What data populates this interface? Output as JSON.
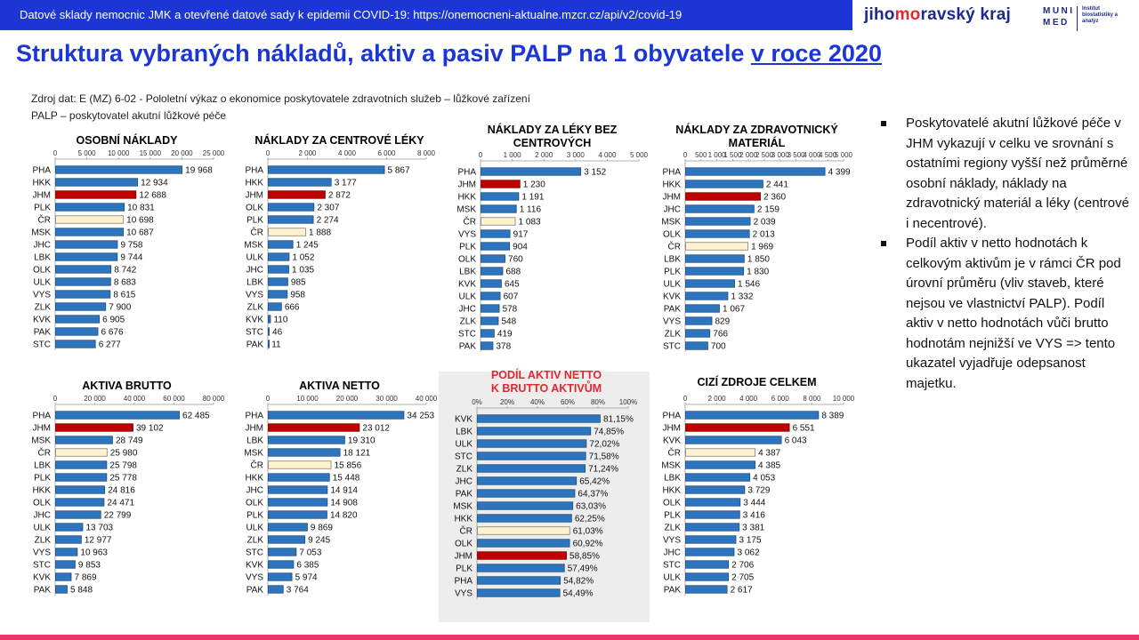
{
  "header": {
    "banner_text": "Datové sklady nemocnic JMK a otevřené datové sady k epidemii COVID-19: https://onemocneni-aktualne.mzcr.cz/api/v2/covid-19",
    "logo_jmk_pre": "jiho",
    "logo_jmk_accent": "mo",
    "logo_jmk_post": "ravský kraj",
    "logo_muni_line1": "MUNI",
    "logo_muni_line2": "MED",
    "logo_muni_institute": "Institut biostatistiky a analýz"
  },
  "title_main": "Struktura vybraných nákladů, aktiv a pasiv PALP na 1 obyvatele ",
  "title_underlined": "v roce 2020",
  "source_line1": "Zdroj dat: E (MZ) 6-02 - Pololetní výkaz o ekonomice poskytovatele zdravotních služeb – lůžkové zařízení",
  "source_line2": "PALP – poskytovatel akutní lůžkové péče",
  "bullets": [
    "Poskytovatelé akutní lůžkové péče v JHM vykazují v celku ve srovnání s ostatními regiony vyšší než průměrné osobní náklady, náklady na zdravotnický materiál a léky (centrové i necentrové).",
    "Podíl aktiv v netto hodnotách k celkovým aktivům je v rámci ČR pod úrovní průměru (vliv staveb, které nejsou ve vlastnictví PALP). Podíl aktiv v netto hodnotách vůči brutto hodnotám nejnižší ve VYS => tento ukazatel vyjadřuje odepsanost majetku."
  ],
  "colors": {
    "default_bar": "#2e75c0",
    "jhm_bar": "#c00000",
    "cr_bar": "#fff2cc",
    "title_red": "#e0282f",
    "brand_blue": "#1c36d6"
  },
  "chart_data": [
    {
      "type": "bar",
      "title": "OSOBNÍ NÁKLADY",
      "xlim": [
        0,
        25000
      ],
      "ticks": [
        "0",
        "5 000",
        "10 000",
        "15 000",
        "20 000",
        "25 000"
      ],
      "categories": [
        "PHA",
        "HKK",
        "JHM",
        "PLK",
        "ČR",
        "MSK",
        "JHC",
        "LBK",
        "OLK",
        "ULK",
        "VYS",
        "ZLK",
        "KVK",
        "PAK",
        "STC"
      ],
      "values": [
        19968,
        12934,
        12688,
        10831,
        10698,
        10687,
        9758,
        9744,
        8742,
        8683,
        8615,
        7900,
        6905,
        6676,
        6277
      ],
      "labels": [
        "19 968",
        "12 934",
        "12 688",
        "10 831",
        "10 698",
        "10 687",
        "9 758",
        "9 744",
        "8 742",
        "8 683",
        "8 615",
        "7 900",
        "6 905",
        "6 676",
        "6 277"
      ]
    },
    {
      "type": "bar",
      "title": "NÁKLADY ZA CENTROVÉ LÉKY",
      "xlim": [
        0,
        8000
      ],
      "ticks": [
        "0",
        "2 000",
        "4 000",
        "6 000",
        "8 000"
      ],
      "categories": [
        "PHA",
        "HKK",
        "JHM",
        "OLK",
        "PLK",
        "ČR",
        "MSK",
        "ULK",
        "JHC",
        "LBK",
        "VYS",
        "ZLK",
        "KVK",
        "STC",
        "PAK"
      ],
      "values": [
        5867,
        3177,
        2872,
        2307,
        2274,
        1888,
        1245,
        1052,
        1035,
        985,
        958,
        666,
        110,
        46,
        11
      ],
      "labels": [
        "5 867",
        "3 177",
        "2 872",
        "2 307",
        "2 274",
        "1 888",
        "1 245",
        "1 052",
        "1 035",
        "985",
        "958",
        "666",
        "110",
        "46",
        "11"
      ]
    },
    {
      "type": "bar",
      "title": "NÁKLADY ZA LÉKY BEZ CENTROVÝCH",
      "xlim": [
        0,
        5000
      ],
      "ticks": [
        "0",
        "1 000",
        "2 000",
        "3 000",
        "4 000",
        "5 000"
      ],
      "categories": [
        "PHA",
        "JHM",
        "HKK",
        "MSK",
        "ČR",
        "VYS",
        "PLK",
        "OLK",
        "LBK",
        "KVK",
        "ULK",
        "JHC",
        "ZLK",
        "STC",
        "PAK"
      ],
      "values": [
        3152,
        1230,
        1191,
        1116,
        1083,
        917,
        904,
        760,
        688,
        645,
        607,
        578,
        548,
        419,
        378
      ],
      "labels": [
        "3 152",
        "1 230",
        "1 191",
        "1 116",
        "1 083",
        "917",
        "904",
        "760",
        "688",
        "645",
        "607",
        "578",
        "548",
        "419",
        "378"
      ]
    },
    {
      "type": "bar",
      "title": "NÁKLADY ZA ZDRAVOTNICKÝ MATERIÁL",
      "xlim": [
        0,
        5000
      ],
      "ticks": [
        "0",
        "500",
        "1 000",
        "1 500",
        "2 000",
        "2 500",
        "3 000",
        "3 500",
        "4 000",
        "4 500",
        "5 000"
      ],
      "categories": [
        "PHA",
        "HKK",
        "JHM",
        "JHC",
        "MSK",
        "OLK",
        "ČR",
        "LBK",
        "PLK",
        "ULK",
        "KVK",
        "PAK",
        "VYS",
        "ZLK",
        "STC"
      ],
      "values": [
        4399,
        2441,
        2360,
        2159,
        2039,
        2013,
        1969,
        1850,
        1830,
        1546,
        1332,
        1067,
        829,
        766,
        700
      ],
      "labels": [
        "4 399",
        "2 441",
        "2 360",
        "2 159",
        "2 039",
        "2 013",
        "1 969",
        "1 850",
        "1 830",
        "1 546",
        "1 332",
        "1 067",
        "829",
        "766",
        "700"
      ]
    },
    {
      "type": "bar",
      "title": "AKTIVA BRUTTO",
      "xlim": [
        0,
        80000
      ],
      "ticks": [
        "0",
        "20 000",
        "40 000",
        "60 000",
        "80 000"
      ],
      "categories": [
        "PHA",
        "JHM",
        "MSK",
        "ČR",
        "LBK",
        "PLK",
        "HKK",
        "OLK",
        "JHC",
        "ULK",
        "ZLK",
        "VYS",
        "STC",
        "KVK",
        "PAK"
      ],
      "values": [
        62485,
        39102,
        28749,
        25980,
        25798,
        25778,
        24816,
        24471,
        22799,
        13703,
        12977,
        10963,
        9853,
        7869,
        5848
      ],
      "labels": [
        "62 485",
        "39 102",
        "28 749",
        "25 980",
        "25 798",
        "25 778",
        "24 816",
        "24 471",
        "22 799",
        "13 703",
        "12 977",
        "10 963",
        "9 853",
        "7 869",
        "5 848"
      ]
    },
    {
      "type": "bar",
      "title": "AKTIVA NETTO",
      "xlim": [
        0,
        40000
      ],
      "ticks": [
        "0",
        "10 000",
        "20 000",
        "30 000",
        "40 000"
      ],
      "categories": [
        "PHA",
        "JHM",
        "LBK",
        "MSK",
        "ČR",
        "HKK",
        "JHC",
        "OLK",
        "PLK",
        "ULK",
        "ZLK",
        "STC",
        "KVK",
        "VYS",
        "PAK"
      ],
      "values": [
        34253,
        23012,
        19310,
        18121,
        15856,
        15448,
        14914,
        14908,
        14820,
        9869,
        9245,
        7053,
        6385,
        5974,
        3764
      ],
      "labels": [
        "34 253",
        "23 012",
        "19 310",
        "18 121",
        "15 856",
        "15 448",
        "14 914",
        "14 908",
        "14 820",
        "9 869",
        "9 245",
        "7 053",
        "6 385",
        "5 974",
        "3 764"
      ]
    },
    {
      "type": "bar",
      "title": "PODÍL AKTIV NETTO K BRUTTO AKTIVŮM",
      "title_color": "#e0282f",
      "xlim": [
        0,
        100
      ],
      "ticks": [
        "0%",
        "20%",
        "40%",
        "60%",
        "80%",
        "100%"
      ],
      "categories": [
        "KVK",
        "LBK",
        "ULK",
        "STC",
        "ZLK",
        "JHC",
        "PAK",
        "MSK",
        "HKK",
        "ČR",
        "OLK",
        "JHM",
        "PLK",
        "PHA",
        "VYS"
      ],
      "values": [
        81.15,
        74.85,
        72.02,
        71.58,
        71.24,
        65.42,
        64.37,
        63.03,
        62.25,
        61.03,
        60.92,
        58.85,
        57.49,
        54.82,
        54.49
      ],
      "labels": [
        "81,15%",
        "74,85%",
        "72,02%",
        "71,58%",
        "71,24%",
        "65,42%",
        "64,37%",
        "63,03%",
        "62,25%",
        "61,03%",
        "60,92%",
        "58,85%",
        "57,49%",
        "54,82%",
        "54,49%"
      ]
    },
    {
      "type": "bar",
      "title": "CIZÍ ZDROJE CELKEM",
      "xlim": [
        0,
        10000
      ],
      "ticks": [
        "0",
        "2 000",
        "4 000",
        "6 000",
        "8 000",
        "10 000"
      ],
      "categories": [
        "PHA",
        "JHM",
        "KVK",
        "ČR",
        "MSK",
        "LBK",
        "HKK",
        "OLK",
        "PLK",
        "ZLK",
        "VYS",
        "JHC",
        "STC",
        "ULK",
        "PAK"
      ],
      "values": [
        8389,
        6551,
        6043,
        4387,
        4385,
        4053,
        3729,
        3444,
        3416,
        3381,
        3175,
        3062,
        2706,
        2705,
        2617
      ],
      "labels": [
        "8 389",
        "6 551",
        "6 043",
        "4 387",
        "4 385",
        "4 053",
        "3 729",
        "3 444",
        "3 416",
        "3 381",
        "3 175",
        "3 062",
        "2 706",
        "2 705",
        "2 617"
      ]
    }
  ]
}
